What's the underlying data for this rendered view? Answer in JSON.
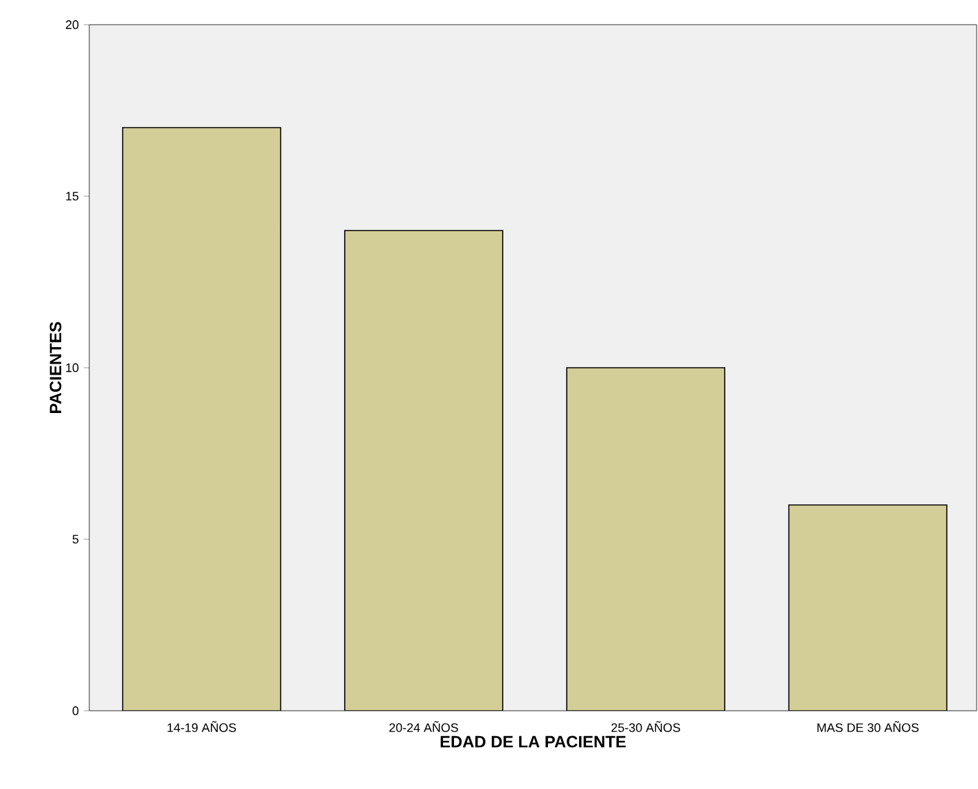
{
  "chart_data": {
    "type": "bar",
    "xlabel": "EDAD DE LA PACIENTE",
    "ylabel": "PACIENTES",
    "categories": [
      "14-19 AÑOS",
      "20-24 AÑOS",
      "25-30 AÑOS",
      "MAS DE 30 AÑOS"
    ],
    "values": [
      17,
      14,
      10,
      6
    ],
    "color": "#d3ce97",
    "ylim": [
      0,
      20
    ],
    "yticks": [
      0,
      5,
      10,
      15,
      20
    ],
    "grid": false
  }
}
